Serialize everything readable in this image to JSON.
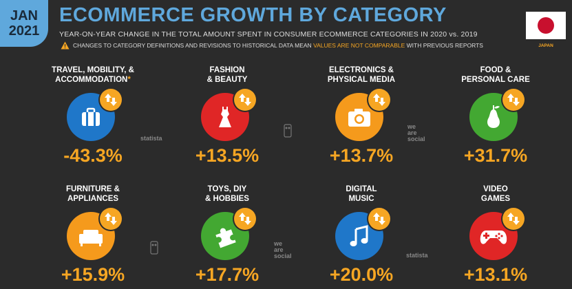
{
  "header": {
    "month": "JAN",
    "year": "2021",
    "title": "ECOMMERCE GROWTH BY CATEGORY",
    "subtitle": "YEAR-ON-YEAR CHANGE IN THE TOTAL AMOUNT SPENT IN CONSUMER ECOMMERCE CATEGORIES IN 2020 vs. 2019",
    "warning_pre": "CHANGES TO CATEGORY DEFINITIONS AND REVISIONS TO HISTORICAL DATA MEAN",
    "warning_highlight": "VALUES ARE NOT COMPARABLE",
    "warning_post": "WITH PREVIOUS REPORTS",
    "country": "JAPAN"
  },
  "watermarks": {
    "statista": "statista",
    "we": "we",
    "are": "are",
    "social": "social"
  },
  "colors": {
    "accent": "#5fa8dc",
    "highlight": "#f6a623",
    "blue": "#1f77c9",
    "red": "#e02626",
    "orange": "#f59a1c",
    "green": "#43a832"
  },
  "chart_data": {
    "type": "table",
    "title": "ECOMMERCE GROWTH BY CATEGORY",
    "unit": "%",
    "categories": [
      {
        "label_1": "TRAVEL, MOBILITY, &",
        "label_2": "ACCOMMODATION",
        "asterisk": "*",
        "display": "-43.3%",
        "value": -43.3,
        "color": "#1f77c9",
        "icon": "suitcase-icon"
      },
      {
        "label_1": "FASHION",
        "label_2": "& BEAUTY",
        "asterisk": "",
        "display": "+13.5%",
        "value": 13.5,
        "color": "#e02626",
        "icon": "dress-icon"
      },
      {
        "label_1": "ELECTRONICS &",
        "label_2": "PHYSICAL MEDIA",
        "asterisk": "",
        "display": "+13.7%",
        "value": 13.7,
        "color": "#f59a1c",
        "icon": "camera-icon"
      },
      {
        "label_1": "FOOD &",
        "label_2": "PERSONAL CARE",
        "asterisk": "",
        "display": "+31.7%",
        "value": 31.7,
        "color": "#43a832",
        "icon": "pear-icon"
      },
      {
        "label_1": "FURNITURE &",
        "label_2": "APPLIANCES",
        "asterisk": "",
        "display": "+15.9%",
        "value": 15.9,
        "color": "#f59a1c",
        "icon": "sofa-icon"
      },
      {
        "label_1": "TOYS, DIY",
        "label_2": "& HOBBIES",
        "asterisk": "",
        "display": "+17.7%",
        "value": 17.7,
        "color": "#43a832",
        "icon": "puzzle-icon"
      },
      {
        "label_1": "DIGITAL",
        "label_2": "MUSIC",
        "asterisk": "",
        "display": "+20.0%",
        "value": 20.0,
        "color": "#1f77c9",
        "icon": "music-note-icon"
      },
      {
        "label_1": "VIDEO",
        "label_2": "GAMES",
        "asterisk": "",
        "display": "+13.1%",
        "value": 13.1,
        "color": "#e02626",
        "icon": "gamepad-icon"
      }
    ]
  }
}
